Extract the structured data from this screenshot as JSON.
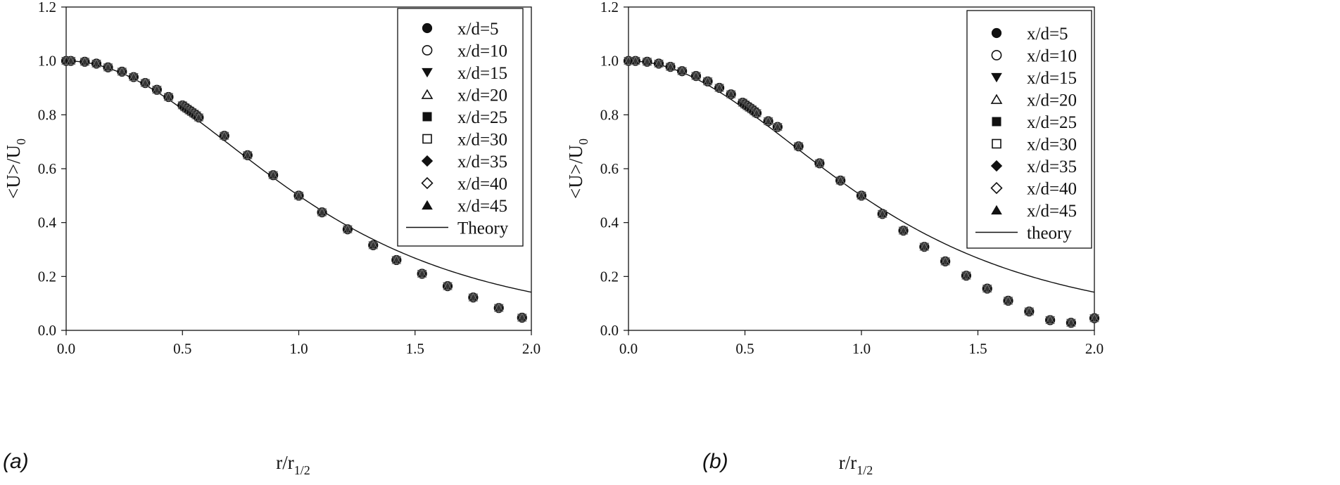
{
  "chart_data": [
    {
      "type": "scatter",
      "panel_label": "(a)",
      "xlabel": {
        "main": "r/r",
        "sub": "1/2"
      },
      "ylabel": {
        "main": "<U>/U",
        "sub": "0"
      },
      "xlim": [
        0.0,
        2.0
      ],
      "ylim": [
        0.0,
        1.2
      ],
      "xticks": [
        "0.0",
        "0.5",
        "1.0",
        "1.5",
        "2.0"
      ],
      "yticks": [
        "0.0",
        "0.2",
        "0.4",
        "0.6",
        "0.8",
        "1.0",
        "1.2"
      ],
      "legend_position": "top-right",
      "series": [
        {
          "name": "x/d=5",
          "marker": "filled-circle"
        },
        {
          "name": "x/d=10",
          "marker": "open-circle"
        },
        {
          "name": "x/d=15",
          "marker": "filled-triangle-down"
        },
        {
          "name": "x/d=20",
          "marker": "open-triangle-up"
        },
        {
          "name": "x/d=25",
          "marker": "filled-square"
        },
        {
          "name": "x/d=30",
          "marker": "open-square"
        },
        {
          "name": "x/d=35",
          "marker": "filled-diamond"
        },
        {
          "name": "x/d=40",
          "marker": "open-diamond"
        },
        {
          "name": "x/d=45",
          "marker": "filled-triangle-up"
        }
      ],
      "line_label": "Theory",
      "points": [
        [
          0.0,
          1.0
        ],
        [
          0.02,
          1.0
        ],
        [
          0.08,
          0.997
        ],
        [
          0.13,
          0.99
        ],
        [
          0.18,
          0.976
        ],
        [
          0.24,
          0.96
        ],
        [
          0.29,
          0.94
        ],
        [
          0.34,
          0.918
        ],
        [
          0.39,
          0.893
        ],
        [
          0.44,
          0.866
        ],
        [
          0.5,
          0.835
        ],
        [
          0.51,
          0.828
        ],
        [
          0.52,
          0.822
        ],
        [
          0.53,
          0.816
        ],
        [
          0.54,
          0.81
        ],
        [
          0.55,
          0.804
        ],
        [
          0.56,
          0.798
        ],
        [
          0.57,
          0.79
        ],
        [
          0.68,
          0.722
        ],
        [
          0.78,
          0.65
        ],
        [
          0.89,
          0.576
        ],
        [
          1.0,
          0.5
        ],
        [
          1.1,
          0.438
        ],
        [
          1.21,
          0.375
        ],
        [
          1.32,
          0.316
        ],
        [
          1.42,
          0.261
        ],
        [
          1.53,
          0.21
        ],
        [
          1.64,
          0.164
        ],
        [
          1.75,
          0.122
        ],
        [
          1.86,
          0.083
        ],
        [
          1.96,
          0.047
        ]
      ]
    },
    {
      "type": "scatter",
      "panel_label": "(b)",
      "xlabel": {
        "main": "r/r",
        "sub": "1/2"
      },
      "ylabel": {
        "main": "<U>/U",
        "sub": "0"
      },
      "xlim": [
        0.0,
        2.0
      ],
      "ylim": [
        0.0,
        1.2
      ],
      "xticks": [
        "0.0",
        "0.5",
        "1.0",
        "1.5",
        "2.0"
      ],
      "yticks": [
        "0.0",
        "0.2",
        "0.4",
        "0.6",
        "0.8",
        "1.0",
        "1.2"
      ],
      "legend_position": "top-right",
      "series": [
        {
          "name": "x/d=5",
          "marker": "filled-circle"
        },
        {
          "name": "x/d=10",
          "marker": "open-circle"
        },
        {
          "name": "x/d=15",
          "marker": "filled-triangle-down"
        },
        {
          "name": "x/d=20",
          "marker": "open-triangle-up"
        },
        {
          "name": "x/d=25",
          "marker": "filled-square"
        },
        {
          "name": "x/d=30",
          "marker": "open-square"
        },
        {
          "name": "x/d=35",
          "marker": "filled-diamond"
        },
        {
          "name": "x/d=40",
          "marker": "open-diamond"
        },
        {
          "name": "x/d=45",
          "marker": "filled-triangle-up"
        }
      ],
      "line_label": "theory",
      "points": [
        [
          0.0,
          1.0
        ],
        [
          0.03,
          1.0
        ],
        [
          0.08,
          0.997
        ],
        [
          0.13,
          0.99
        ],
        [
          0.18,
          0.978
        ],
        [
          0.23,
          0.962
        ],
        [
          0.29,
          0.944
        ],
        [
          0.34,
          0.924
        ],
        [
          0.39,
          0.9
        ],
        [
          0.44,
          0.876
        ],
        [
          0.49,
          0.845
        ],
        [
          0.5,
          0.838
        ],
        [
          0.51,
          0.832
        ],
        [
          0.52,
          0.826
        ],
        [
          0.53,
          0.82
        ],
        [
          0.54,
          0.813
        ],
        [
          0.55,
          0.806
        ],
        [
          0.6,
          0.776
        ],
        [
          0.64,
          0.755
        ],
        [
          0.73,
          0.683
        ],
        [
          0.82,
          0.62
        ],
        [
          0.91,
          0.556
        ],
        [
          1.0,
          0.5
        ],
        [
          1.09,
          0.432
        ],
        [
          1.18,
          0.37
        ],
        [
          1.27,
          0.31
        ],
        [
          1.36,
          0.256
        ],
        [
          1.45,
          0.203
        ],
        [
          1.54,
          0.155
        ],
        [
          1.63,
          0.11
        ],
        [
          1.72,
          0.07
        ],
        [
          1.81,
          0.038
        ],
        [
          1.9,
          0.028
        ],
        [
          2.0,
          0.045
        ]
      ]
    }
  ]
}
